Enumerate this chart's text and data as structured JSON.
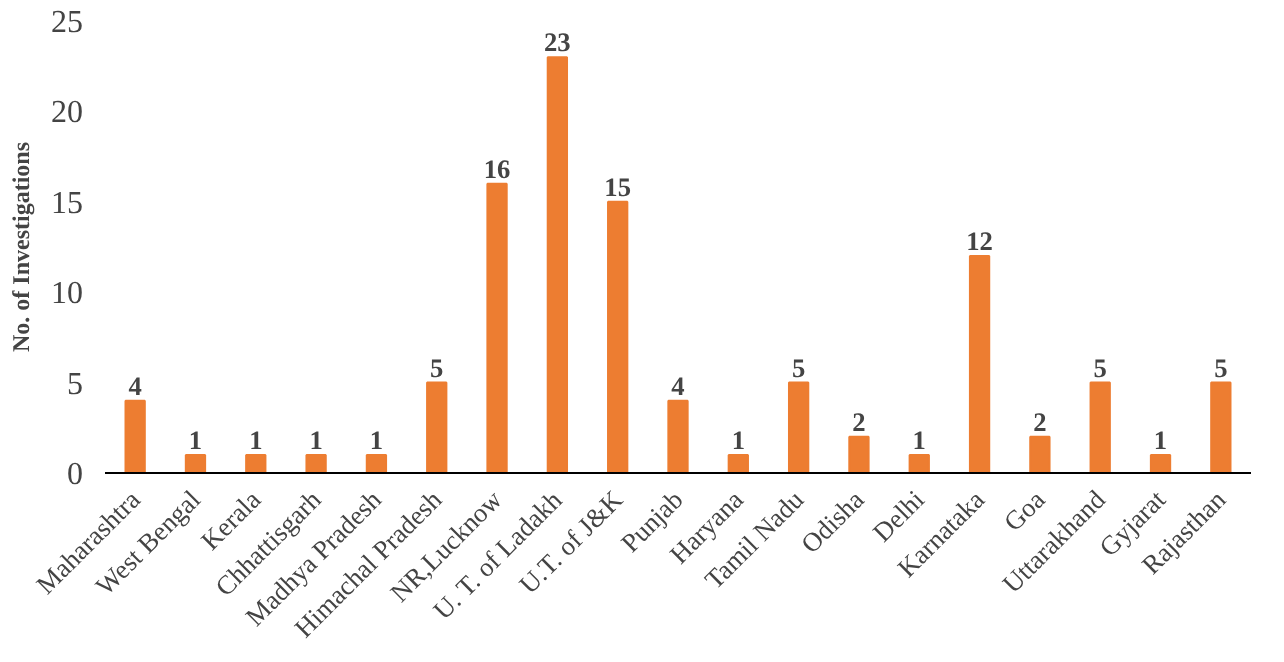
{
  "chart_data": {
    "type": "bar",
    "ylabel": "No. of Investigations",
    "categories": [
      "Maharashtra",
      "West Bengal",
      "Kerala",
      "Chhattisgarh",
      "Madhya Pradesh",
      "Himachal Pradesh",
      "NR,Lucknow",
      "U. T. of Ladakh",
      "U.T. of J&K",
      "Punjab",
      "Haryana",
      "Tamil Nadu",
      "Odisha",
      "Delhi",
      "Karnataka",
      "Goa",
      "Uttarakhand",
      "Gyjarat",
      "Rajasthan"
    ],
    "values": [
      4,
      1,
      1,
      1,
      1,
      5,
      16,
      23,
      15,
      4,
      1,
      5,
      2,
      1,
      12,
      2,
      5,
      1,
      5
    ],
    "color": "#ed7d31",
    "ylim": [
      0,
      25
    ],
    "yticks": [
      0,
      5,
      10,
      15,
      20,
      25
    ],
    "grid": false,
    "data_labels": true
  }
}
